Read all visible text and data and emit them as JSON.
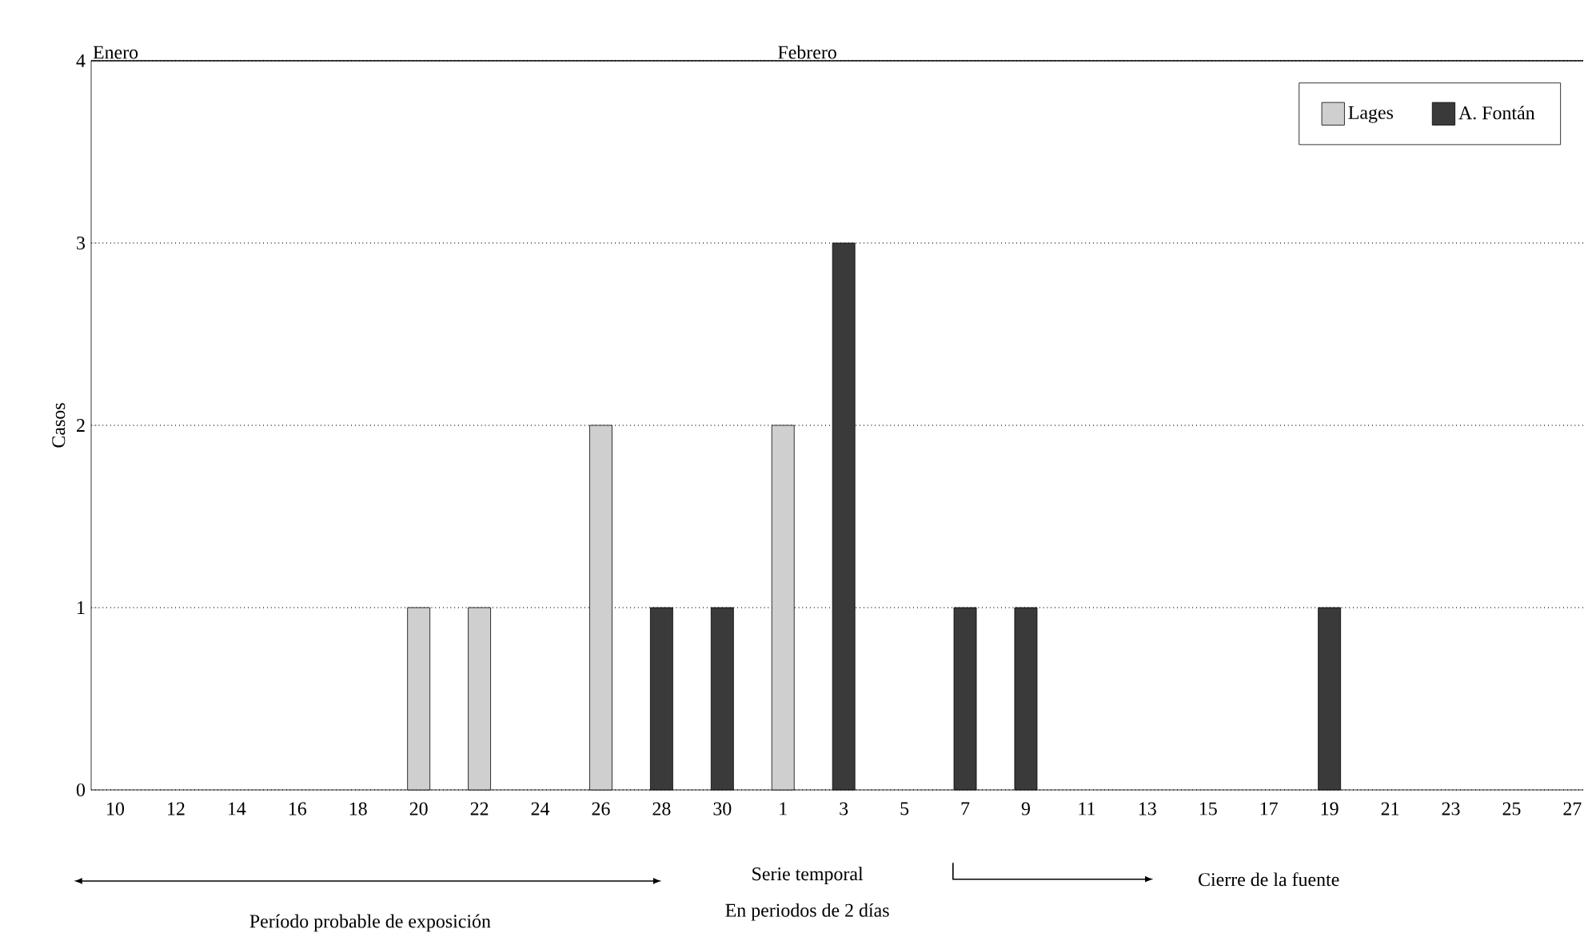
{
  "chart_data": {
    "type": "bar",
    "ylabel": "Casos",
    "categories": [
      "10",
      "12",
      "14",
      "16",
      "18",
      "20",
      "22",
      "24",
      "26",
      "28",
      "30",
      "1",
      "3",
      "5",
      "7",
      "9",
      "11",
      "13",
      "15",
      "17",
      "19",
      "21",
      "23",
      "25",
      "27"
    ],
    "series": [
      {
        "name": "Lages",
        "color": "#cfcfcf",
        "values": [
          null,
          null,
          null,
          null,
          null,
          1,
          1,
          null,
          2,
          null,
          null,
          2,
          null,
          null,
          null,
          null,
          null,
          null,
          null,
          null,
          null,
          null,
          null,
          null,
          null
        ]
      },
      {
        "name": "A. Fontán",
        "color": "#3a3a3a",
        "values": [
          null,
          null,
          null,
          null,
          null,
          null,
          null,
          null,
          null,
          1,
          1,
          null,
          3,
          null,
          1,
          1,
          null,
          null,
          null,
          null,
          1,
          null,
          null,
          null,
          null
        ]
      }
    ],
    "ylim": [
      0,
      4
    ],
    "yticks": [
      0,
      1,
      2,
      3,
      4
    ],
    "grid": "y",
    "legend": "top right",
    "annotations": [
      "Enero",
      "Febrero",
      "Período probable de exposición",
      "Serie temporal",
      "En periodos de 2 días",
      "Cierre de la fuente"
    ]
  }
}
